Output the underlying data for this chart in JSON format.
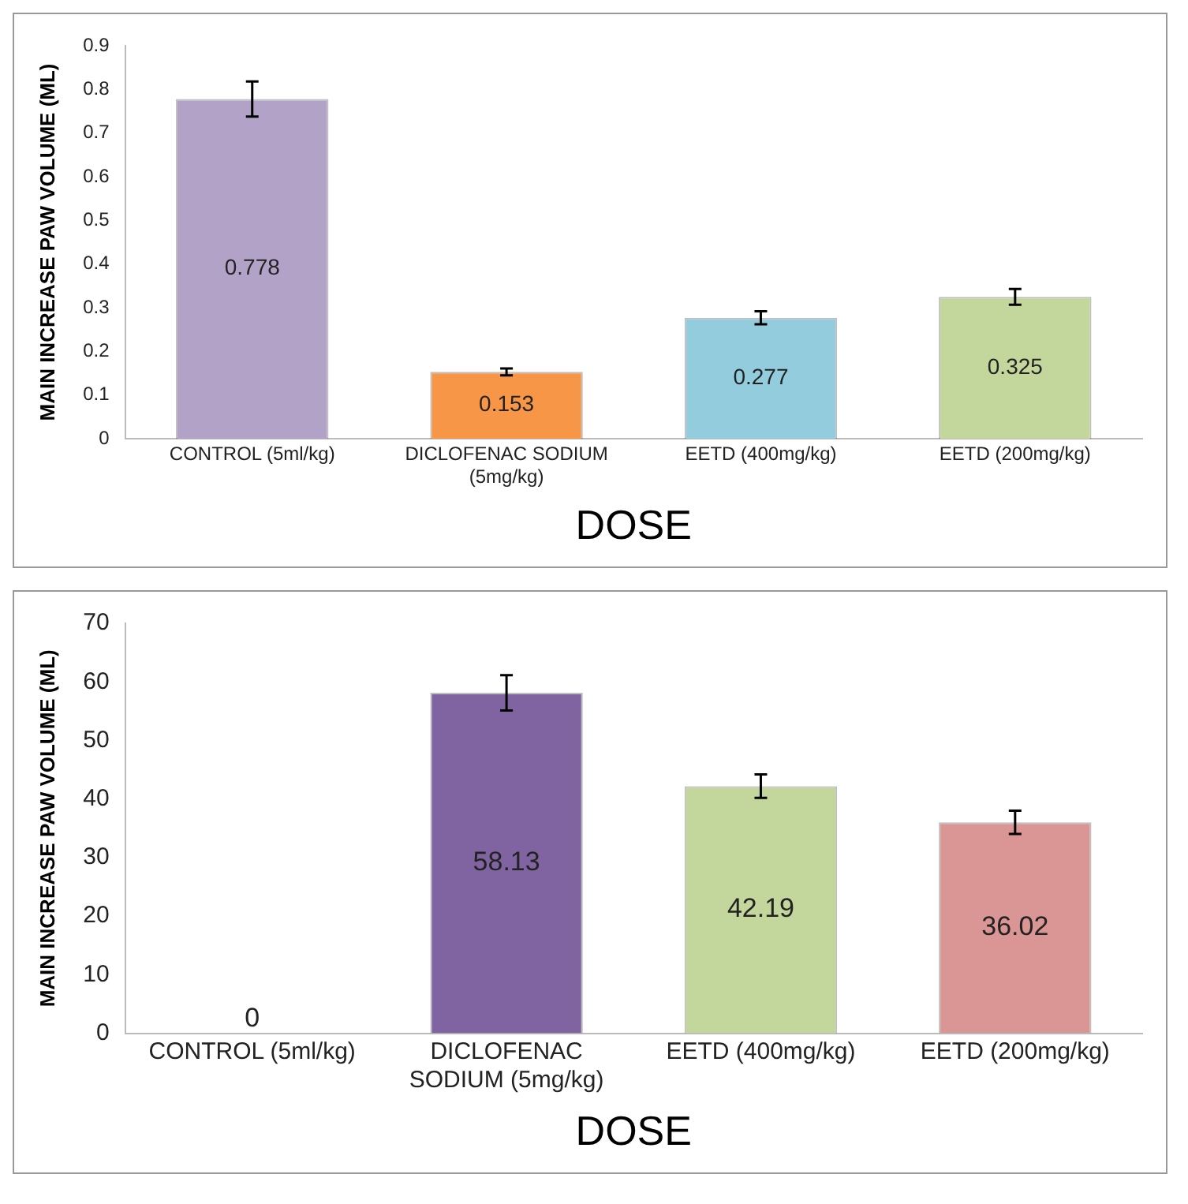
{
  "chart_data": [
    {
      "type": "bar",
      "xlabel": "DOSE",
      "ylabel": "MAIN INCREASE PAW VOLUME (ML)",
      "categories": [
        "CONTROL (5ml/kg)",
        "DICLOFENAC SODIUM (5mg/kg)",
        "EETD (400mg/kg)",
        "EETD (200mg/kg)"
      ],
      "values": [
        0.778,
        0.153,
        0.277,
        0.325
      ],
      "colors": [
        "#b3a2c7",
        "#f79646",
        "#93cddd",
        "#c3d69b"
      ],
      "errors": [
        0.04,
        0.008,
        0.015,
        0.018
      ],
      "ylim": [
        0,
        0.9
      ],
      "yticks": [
        0,
        0.1,
        0.2,
        0.3,
        0.4,
        0.5,
        0.6,
        0.7,
        0.8,
        0.9
      ],
      "grid": false,
      "legend": false,
      "data_labels": true
    },
    {
      "type": "bar",
      "xlabel": "DOSE",
      "ylabel": "MAIN INCREASE PAW VOLUME (ML)",
      "categories": [
        "CONTROL (5ml/kg)",
        "DICLOFENAC SODIUM (5mg/kg)",
        "EETD (400mg/kg)",
        "EETD (200mg/kg)"
      ],
      "values": [
        0,
        58.13,
        42.19,
        36.02
      ],
      "colors": [
        "#8064a2",
        "#8064a2",
        "#c3d69b",
        "#d99694"
      ],
      "errors": [
        null,
        3,
        2,
        2
      ],
      "ylim": [
        0,
        70
      ],
      "yticks": [
        0,
        10,
        20,
        30,
        40,
        50,
        60,
        70
      ],
      "grid": false,
      "legend": false,
      "data_labels": true
    }
  ]
}
